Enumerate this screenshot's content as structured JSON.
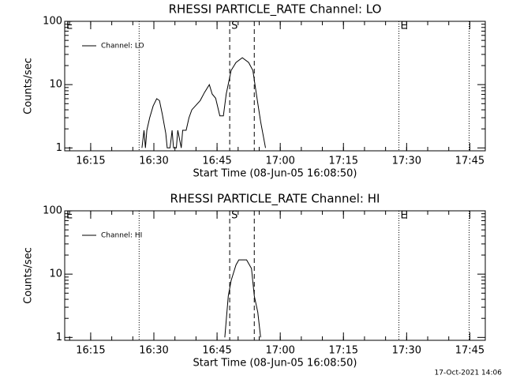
{
  "chart_data": [
    {
      "type": "line",
      "title": "RHESSI PARTICLE_RATE Channel: LO",
      "xlabel": "Start Time (08-Jun-05 16:08:50)",
      "ylabel": "Counts/sec",
      "log_y": true,
      "xlim": [
        "16:08:50",
        "17:48:40"
      ],
      "xticks": [
        "16:15",
        "16:30",
        "16:45",
        "17:00",
        "17:15",
        "17:30",
        "17:45"
      ],
      "ylim": [
        0.9,
        100
      ],
      "yticks": [
        1,
        10,
        100
      ],
      "legend": "upper left",
      "vlines": [
        {
          "time": "16:26:30",
          "style": "dotted"
        },
        {
          "time": "16:48:00",
          "style": "dashed"
        },
        {
          "time": "16:53:50",
          "style": "dashed"
        },
        {
          "time": "17:28:10",
          "style": "dotted"
        },
        {
          "time": "17:44:50",
          "style": "dotted"
        }
      ],
      "flags": [
        {
          "label": "E",
          "time": "16:08:50"
        },
        {
          "label": "S",
          "time": "16:48:00"
        },
        {
          "label": "E",
          "time": "17:28:10"
        }
      ],
      "series": [
        {
          "name": "Channel: LO",
          "color": "#000000",
          "x": [
            "16:27:10",
            "16:27:40",
            "16:28:00",
            "16:28:20",
            "16:29:00",
            "16:29:50",
            "16:30:40",
            "16:31:20",
            "16:32:00",
            "16:32:50",
            "16:33:10",
            "16:33:50",
            "16:34:20",
            "16:34:40",
            "16:35:20",
            "16:35:40",
            "16:36:30",
            "16:36:50",
            "16:37:40",
            "16:38:20",
            "16:39:00",
            "16:41:00",
            "16:42:00",
            "16:43:10",
            "16:43:50",
            "16:44:40",
            "16:45:40",
            "16:46:30",
            "16:47:10",
            "16:48:20",
            "16:49:30",
            "16:51:00",
            "16:52:30",
            "16:53:30",
            "16:54:20",
            "16:55:20",
            "16:56:30"
          ],
          "values": [
            1,
            1.9,
            1,
            1.9,
            3.0,
            4.6,
            6.0,
            5.6,
            3.4,
            1.7,
            1,
            1,
            1.9,
            1,
            1,
            1.9,
            1,
            1.9,
            1.9,
            3.0,
            4.0,
            5.6,
            7.5,
            10,
            7.1,
            6.1,
            3.2,
            3.2,
            7.1,
            16.7,
            22.4,
            26.6,
            22.4,
            16.7,
            7.1,
            2.6,
            1
          ]
        }
      ]
    },
    {
      "type": "line",
      "title": "RHESSI PARTICLE_RATE Channel: HI",
      "xlabel": "Start Time (08-Jun-05 16:08:50)",
      "ylabel": "Counts/sec",
      "log_y": true,
      "xlim": [
        "16:08:50",
        "17:48:40"
      ],
      "xticks": [
        "16:15",
        "16:30",
        "16:45",
        "17:00",
        "17:15",
        "17:30",
        "17:45"
      ],
      "ylim": [
        0.9,
        100
      ],
      "yticks": [
        1,
        10,
        100
      ],
      "legend": "upper left",
      "vlines": [
        {
          "time": "16:26:30",
          "style": "dotted"
        },
        {
          "time": "16:48:00",
          "style": "dashed"
        },
        {
          "time": "16:53:50",
          "style": "dashed"
        },
        {
          "time": "17:28:10",
          "style": "dotted"
        },
        {
          "time": "17:44:50",
          "style": "dotted"
        }
      ],
      "flags": [
        {
          "label": "E",
          "time": "16:08:50"
        },
        {
          "label": "S",
          "time": "16:48:00"
        },
        {
          "label": "E",
          "time": "17:28:10"
        }
      ],
      "series": [
        {
          "name": "Channel: HI",
          "color": "#000000",
          "x": [
            "16:46:50",
            "16:47:40",
            "16:48:20",
            "16:49:30",
            "16:50:10",
            "16:52:00",
            "16:53:10",
            "16:53:50",
            "16:54:40",
            "16:55:20"
          ],
          "values": [
            1,
            4.5,
            7.9,
            14,
            16.8,
            16.8,
            12.3,
            4.5,
            2.5,
            1
          ]
        }
      ]
    }
  ],
  "footer": "17-Oct-2021 14:06"
}
